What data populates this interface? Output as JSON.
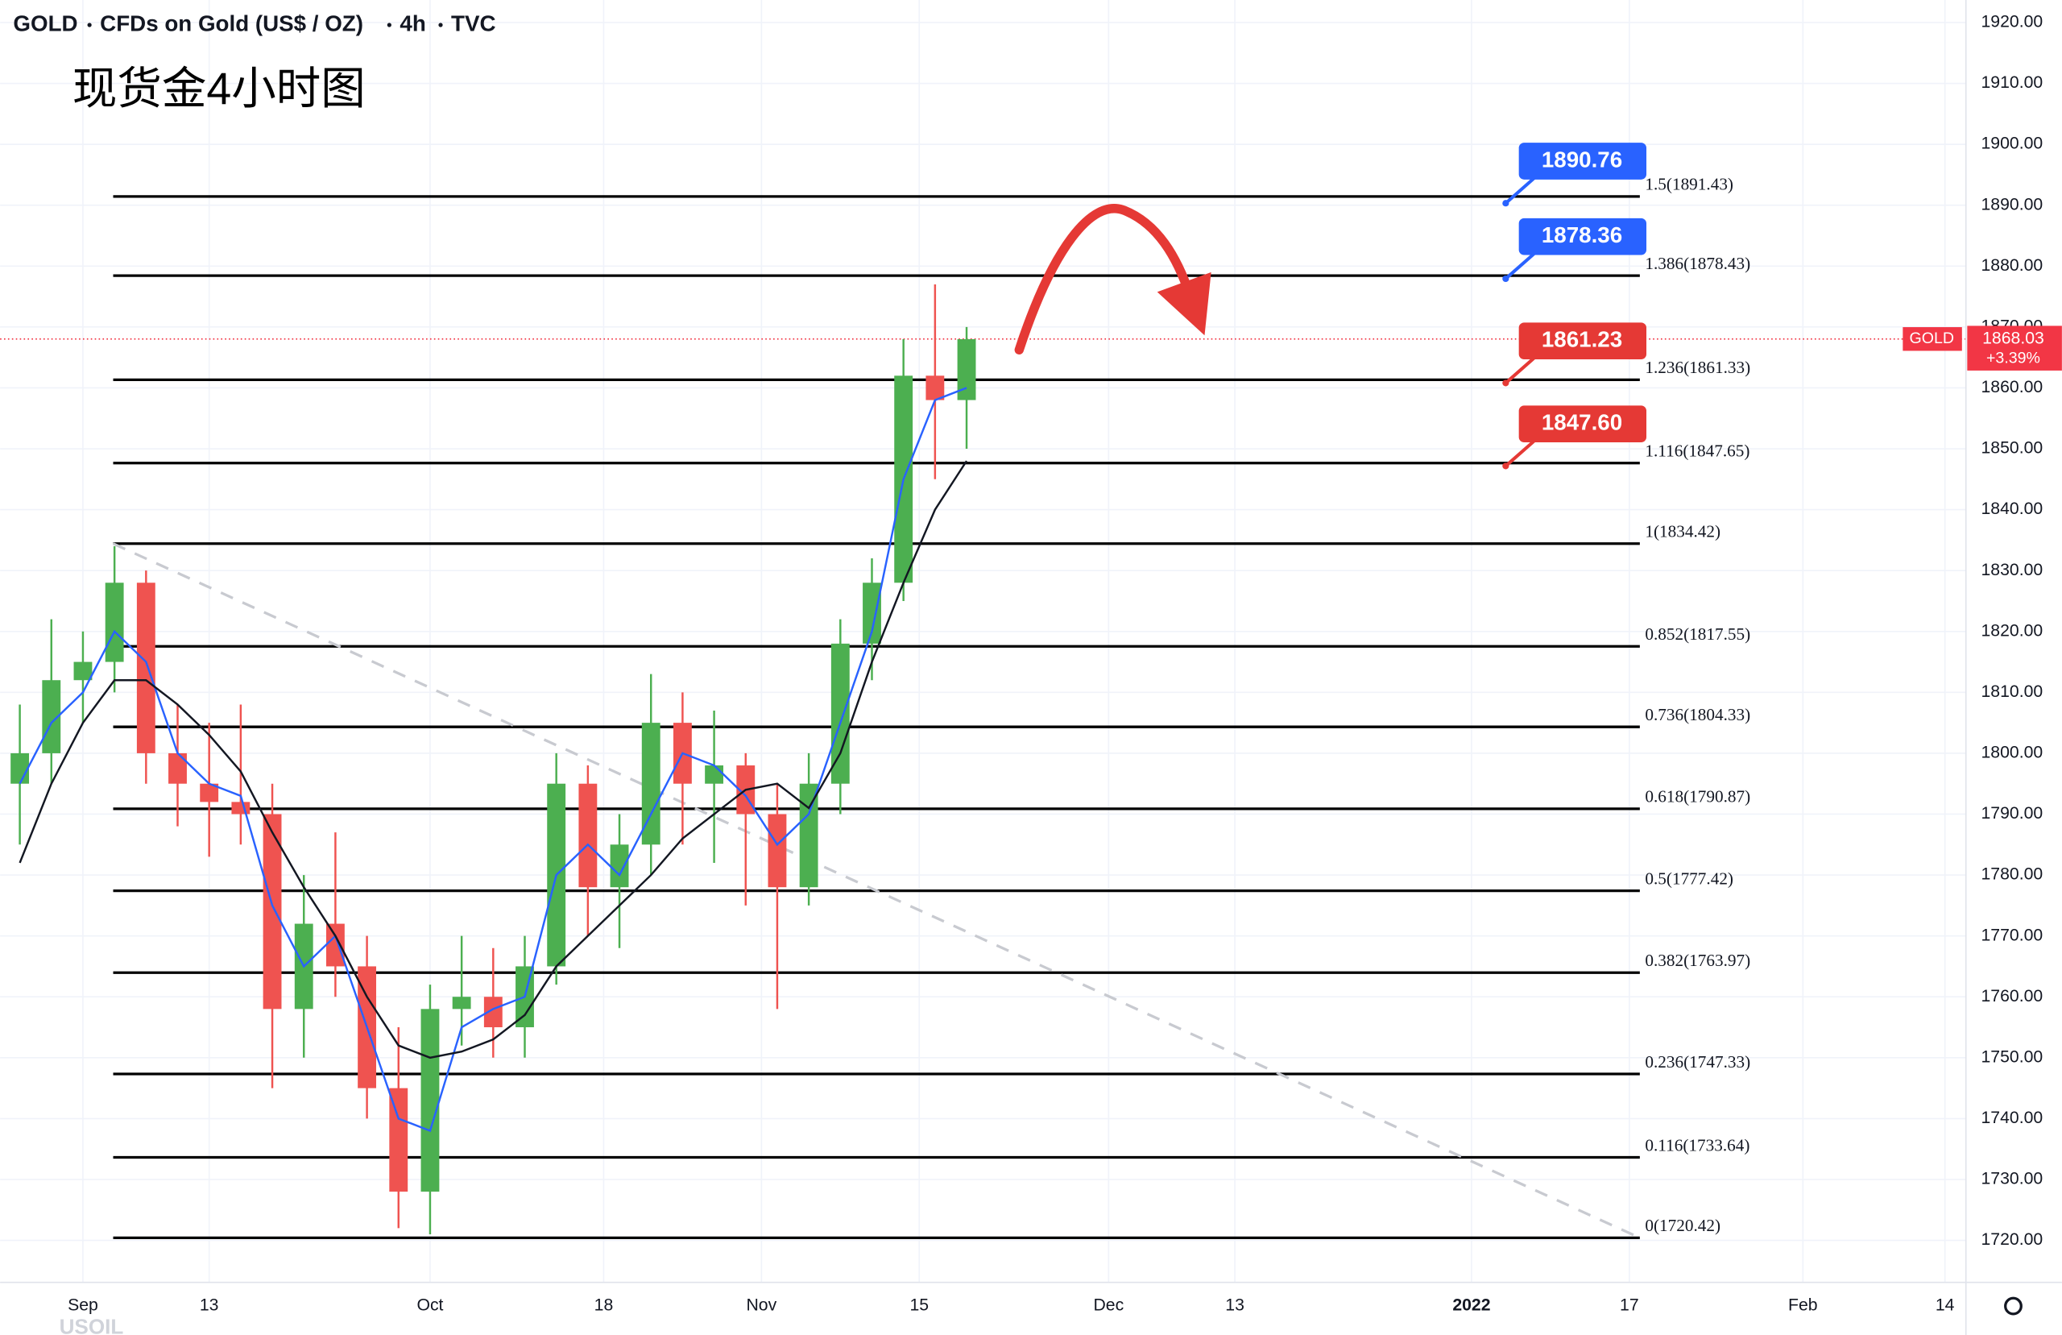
{
  "header": {
    "symbol": "GOLD",
    "name": "CFDs on Gold (US$ / OZ)",
    "interval": "4h",
    "source": "TVC"
  },
  "chart_data": {
    "type": "candlestick",
    "title": "现货金4小时图",
    "watermark": "USOIL",
    "up_color": "#4caf50",
    "down_color": "#ef5350",
    "x": [
      -4,
      -2,
      0,
      2,
      4,
      6,
      8,
      10,
      12,
      14,
      16,
      18,
      20,
      22,
      24,
      26,
      28,
      30,
      32,
      34,
      36,
      38,
      40,
      42,
      44,
      46,
      48,
      50,
      52,
      54,
      56
    ],
    "open": [
      1795,
      1800,
      1812,
      1815,
      1828,
      1800,
      1795,
      1792,
      1790,
      1758,
      1772,
      1765,
      1745,
      1728,
      1758,
      1760,
      1755,
      1765,
      1795,
      1778,
      1785,
      1805,
      1795,
      1798,
      1790,
      1778,
      1795,
      1818,
      1828,
      1862,
      1858
    ],
    "high": [
      1808,
      1822,
      1820,
      1834,
      1830,
      1808,
      1805,
      1808,
      1795,
      1780,
      1787,
      1770,
      1755,
      1762,
      1770,
      1768,
      1770,
      1800,
      1798,
      1790,
      1813,
      1810,
      1807,
      1800,
      1795,
      1800,
      1822,
      1832,
      1868,
      1877,
      1870
    ],
    "low": [
      1785,
      1795,
      1805,
      1810,
      1795,
      1788,
      1783,
      1785,
      1745,
      1750,
      1760,
      1740,
      1722,
      1721,
      1752,
      1750,
      1750,
      1762,
      1770,
      1768,
      1780,
      1785,
      1782,
      1775,
      1758,
      1775,
      1790,
      1812,
      1825,
      1845,
      1850
    ],
    "close": [
      1800,
      1812,
      1815,
      1828,
      1800,
      1795,
      1792,
      1790,
      1758,
      1772,
      1765,
      1745,
      1728,
      1758,
      1760,
      1755,
      1765,
      1795,
      1778,
      1785,
      1805,
      1795,
      1798,
      1790,
      1778,
      1795,
      1818,
      1828,
      1862,
      1858,
      1868
    ],
    "series": [
      {
        "color": "#2962ff",
        "values": [
          1795,
          1805,
          1810,
          1820,
          1815,
          1800,
          1795,
          1793,
          1775,
          1765,
          1770,
          1755,
          1740,
          1738,
          1755,
          1758,
          1760,
          1780,
          1785,
          1780,
          1790,
          1800,
          1798,
          1793,
          1785,
          1790,
          1805,
          1820,
          1845,
          1858,
          1860
        ]
      },
      {
        "color": "#131722",
        "values": [
          1782,
          1795,
          1805,
          1812,
          1812,
          1808,
          1803,
          1797,
          1787,
          1778,
          1770,
          1760,
          1752,
          1750,
          1751,
          1753,
          1757,
          1765,
          1770,
          1775,
          1780,
          1786,
          1790,
          1794,
          1795,
          1791,
          1800,
          1815,
          1828,
          1840,
          1848
        ]
      }
    ],
    "fib_levels": [
      {
        "label": "1.5(1891.43)",
        "value": 1891.43
      },
      {
        "label": "1.386(1878.43)",
        "value": 1878.43
      },
      {
        "label": "1.236(1861.33)",
        "value": 1861.33
      },
      {
        "label": "1.116(1847.65)",
        "value": 1847.65
      },
      {
        "label": "1(1834.42)",
        "value": 1834.42
      },
      {
        "label": "0.852(1817.55)",
        "value": 1817.55
      },
      {
        "label": "0.736(1804.33)",
        "value": 1804.33
      },
      {
        "label": "0.618(1790.87)",
        "value": 1790.87
      },
      {
        "label": "0.5(1777.42)",
        "value": 1777.42
      },
      {
        "label": "0.382(1763.97)",
        "value": 1763.97
      },
      {
        "label": "0.236(1747.33)",
        "value": 1747.33
      },
      {
        "label": "0.116(1733.64)",
        "value": 1733.64
      },
      {
        "label": "0(1720.42)",
        "value": 1720.42
      }
    ],
    "callouts": [
      {
        "label": "1890.76",
        "value": 1890.76,
        "color": "#2962ff"
      },
      {
        "label": "1878.36",
        "value": 1878.36,
        "color": "#2962ff"
      },
      {
        "label": "1861.23",
        "value": 1861.23,
        "color": "#e53935"
      },
      {
        "label": "1847.60",
        "value": 1847.6,
        "color": "#e53935"
      }
    ],
    "last_price": {
      "symbol": "GOLD",
      "value": 1868.03,
      "label": "1868.03",
      "change": "+3.39%",
      "color": "#f23645"
    },
    "xlim": [
      -5.25,
      119.33
    ],
    "xticks": [
      {
        "value": 0,
        "label": "Sep"
      },
      {
        "value": 8,
        "label": "13"
      },
      {
        "value": 22,
        "label": "Oct"
      },
      {
        "value": 33,
        "label": "18"
      },
      {
        "value": 43,
        "label": "Nov"
      },
      {
        "value": 53,
        "label": "15"
      },
      {
        "value": 65,
        "label": "Dec"
      },
      {
        "value": 73,
        "label": "13"
      },
      {
        "value": 88,
        "label": "2022"
      },
      {
        "value": 98,
        "label": "17"
      },
      {
        "value": 109,
        "label": "Feb"
      },
      {
        "value": 118,
        "label": "14"
      }
    ],
    "ylim": [
      1713.1,
      1923.7
    ],
    "yticks": [
      {
        "value": 1720,
        "label": "1720.00"
      },
      {
        "value": 1730,
        "label": "1730.00"
      },
      {
        "value": 1740,
        "label": "1740.00"
      },
      {
        "value": 1750,
        "label": "1750.00"
      },
      {
        "value": 1760,
        "label": "1760.00"
      },
      {
        "value": 1770,
        "label": "1770.00"
      },
      {
        "value": 1780,
        "label": "1780.00"
      },
      {
        "value": 1790,
        "label": "1790.00"
      },
      {
        "value": 1800,
        "label": "1800.00"
      },
      {
        "value": 1810,
        "label": "1810.00"
      },
      {
        "value": 1820,
        "label": "1820.00"
      },
      {
        "value": 1830,
        "label": "1830.00"
      },
      {
        "value": 1840,
        "label": "1840.00"
      },
      {
        "value": 1850,
        "label": "1850.00"
      },
      {
        "value": 1860,
        "label": "1860.00"
      },
      {
        "value": 1870,
        "label": "1870.00"
      },
      {
        "value": 1880,
        "label": "1880.00"
      },
      {
        "value": 1890,
        "label": "1890.00"
      },
      {
        "value": 1900,
        "label": "1900.00"
      },
      {
        "value": 1910,
        "label": "1910.00"
      },
      {
        "value": 1920,
        "label": "1920.00"
      }
    ],
    "grid": true
  }
}
